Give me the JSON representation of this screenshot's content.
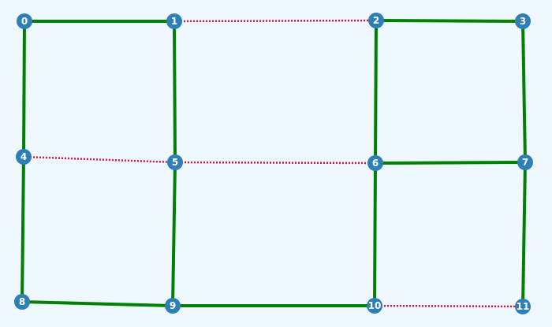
{
  "colors": {
    "background": "#f0f8ff",
    "solid_edge": "#008000",
    "dotted_edge": "#dc143c",
    "node_fill": "#2e7fb5",
    "node_text": "#ffffff"
  },
  "nodes": [
    {
      "id": "0",
      "label": "0"
    },
    {
      "id": "1",
      "label": "1"
    },
    {
      "id": "2",
      "label": "2"
    },
    {
      "id": "3",
      "label": "3"
    },
    {
      "id": "4",
      "label": "4"
    },
    {
      "id": "5",
      "label": "5"
    },
    {
      "id": "6",
      "label": "6"
    },
    {
      "id": "7",
      "label": "7"
    },
    {
      "id": "8",
      "label": "8"
    },
    {
      "id": "9",
      "label": "9"
    },
    {
      "id": "10",
      "label": "10"
    },
    {
      "id": "11",
      "label": "11"
    }
  ],
  "edges": [
    {
      "from": "0",
      "to": "1",
      "style": "solid"
    },
    {
      "from": "1",
      "to": "2",
      "style": "dotted"
    },
    {
      "from": "2",
      "to": "3",
      "style": "solid"
    },
    {
      "from": "0",
      "to": "4",
      "style": "solid"
    },
    {
      "from": "1",
      "to": "5",
      "style": "solid"
    },
    {
      "from": "2",
      "to": "6",
      "style": "solid"
    },
    {
      "from": "3",
      "to": "7",
      "style": "solid"
    },
    {
      "from": "4",
      "to": "5",
      "style": "dotted"
    },
    {
      "from": "5",
      "to": "6",
      "style": "dotted"
    },
    {
      "from": "6",
      "to": "7",
      "style": "solid"
    },
    {
      "from": "4",
      "to": "8",
      "style": "solid"
    },
    {
      "from": "5",
      "to": "9",
      "style": "solid"
    },
    {
      "from": "6",
      "to": "10",
      "style": "solid"
    },
    {
      "from": "7",
      "to": "11",
      "style": "solid"
    },
    {
      "from": "8",
      "to": "9",
      "style": "solid"
    },
    {
      "from": "9",
      "to": "10",
      "style": "solid"
    },
    {
      "from": "10",
      "to": "11",
      "style": "dotted"
    }
  ]
}
